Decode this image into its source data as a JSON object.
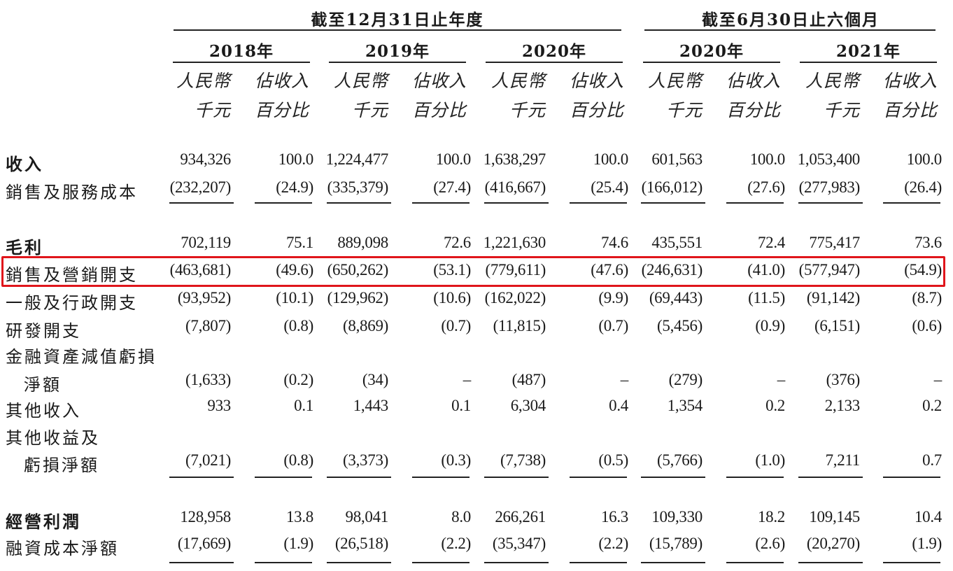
{
  "header": {
    "group1": "截至12月31日止年度",
    "group2": "截至6月30日止六個月",
    "years": [
      "2018年",
      "2019年",
      "2020年",
      "2020年",
      "2021年"
    ],
    "sub_amount_1": "人民幣",
    "sub_amount_2": "千元",
    "sub_pct_1": "佔收入",
    "sub_pct_2": "百分比"
  },
  "rows": [
    {
      "label": "收入",
      "bold": true,
      "values": [
        "934,326",
        "100.0",
        "1,224,477",
        "100.0",
        "1,638,297",
        "100.0",
        "601,563",
        "100.0",
        "1,053,400",
        "100.0"
      ]
    },
    {
      "label": "銷售及服務成本",
      "values": [
        "(232,207)",
        "(24.9)",
        "(335,379)",
        "(27.4)",
        "(416,667)",
        "(25.4)",
        "(166,012)",
        "(27.6)",
        "(277,983)",
        "(26.4)"
      ]
    },
    {
      "label": "毛利",
      "bold": true,
      "values": [
        "702,119",
        "75.1",
        "889,098",
        "72.6",
        "1,221,630",
        "74.6",
        "435,551",
        "72.4",
        "775,417",
        "73.6"
      ]
    },
    {
      "label": "銷售及營銷開支",
      "values": [
        "(463,681)",
        "(49.6)",
        "(650,262)",
        "(53.1)",
        "(779,611)",
        "(47.6)",
        "(246,631)",
        "(41.0)",
        "(577,947)",
        "(54.9)"
      ]
    },
    {
      "label": "一般及行政開支",
      "values": [
        "(93,952)",
        "(10.1)",
        "(129,962)",
        "(10.6)",
        "(162,022)",
        "(9.9)",
        "(69,443)",
        "(11.5)",
        "(91,142)",
        "(8.7)"
      ]
    },
    {
      "label": "研發開支",
      "values": [
        "(7,807)",
        "(0.8)",
        "(8,869)",
        "(0.7)",
        "(11,815)",
        "(0.7)",
        "(5,456)",
        "(0.9)",
        "(6,151)",
        "(0.6)"
      ]
    },
    {
      "label": "金融資產減值虧損",
      "label2": "淨額",
      "values": [
        "(1,633)",
        "(0.2)",
        "(34)",
        "–",
        "(487)",
        "–",
        "(279)",
        "–",
        "(376)",
        "–"
      ]
    },
    {
      "label": "其他收入",
      "values": [
        "933",
        "0.1",
        "1,443",
        "0.1",
        "6,304",
        "0.4",
        "1,354",
        "0.2",
        "2,133",
        "0.2"
      ]
    },
    {
      "label": "其他收益及",
      "label2": "虧損淨額",
      "values": [
        "(7,021)",
        "(0.8)",
        "(3,373)",
        "(0.3)",
        "(7,738)",
        "(0.5)",
        "(5,766)",
        "(1.0)",
        "7,211",
        "0.7"
      ]
    },
    {
      "label": "經營利潤",
      "bold": true,
      "values": [
        "128,958",
        "13.8",
        "98,041",
        "8.0",
        "266,261",
        "16.3",
        "109,330",
        "18.2",
        "109,145",
        "10.4"
      ]
    },
    {
      "label": "融資成本淨額",
      "values": [
        "(17,669)",
        "(1.9)",
        "(26,518)",
        "(2.2)",
        "(35,347)",
        "(2.2)",
        "(15,789)",
        "(2.6)",
        "(20,270)",
        "(1.9)"
      ]
    }
  ],
  "colors": {
    "highlight_border": "#e0151b",
    "text": "#1a1a1a",
    "background": "#ffffff"
  }
}
